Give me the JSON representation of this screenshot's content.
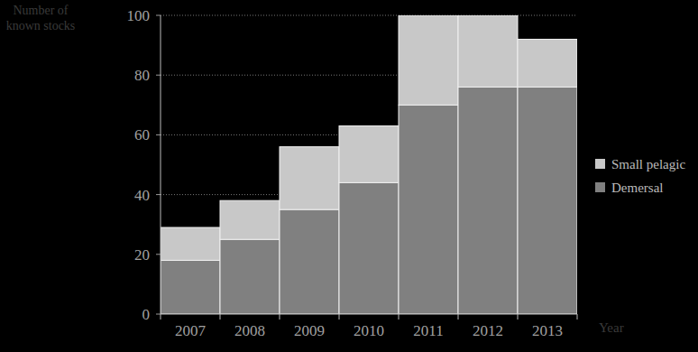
{
  "chart_data": {
    "type": "bar",
    "stacked": true,
    "x_label": "Year",
    "y_label": "Number of known stocks",
    "categories": [
      "2007",
      "2008",
      "2009",
      "2010",
      "2011",
      "2012",
      "2013"
    ],
    "series": [
      {
        "name": "Demersal",
        "color": "#808080",
        "values": [
          18,
          25,
          35,
          44,
          70,
          76,
          76
        ]
      },
      {
        "name": "Small pelagic",
        "color": "#c8c8c8",
        "values": [
          11,
          13,
          21,
          19,
          30,
          24,
          16
        ]
      }
    ],
    "ylim": [
      0,
      100
    ],
    "yticks": [
      0,
      20,
      40,
      60,
      80,
      100
    ],
    "grid": true,
    "legend": "right"
  }
}
